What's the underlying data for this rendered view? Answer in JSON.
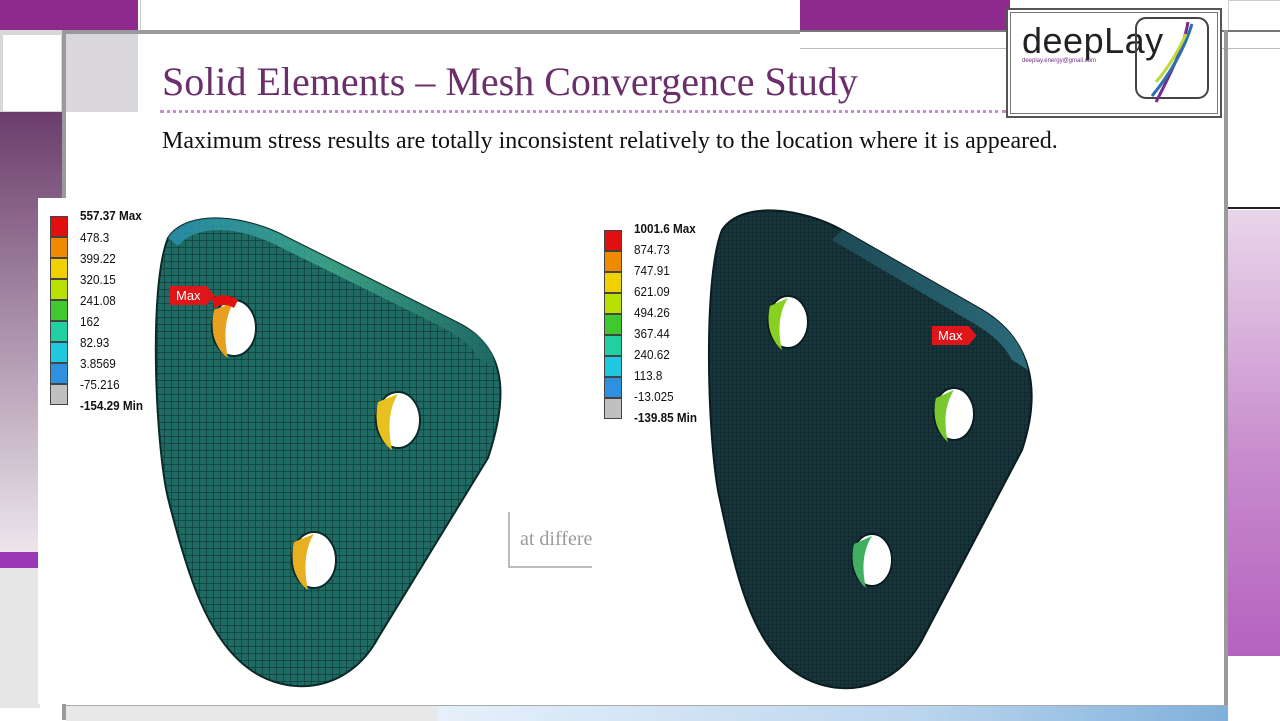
{
  "slide": {
    "title": "Solid Elements – Mesh Convergence Study",
    "body": "Maximum stress results are totally inconsistent relatively to the location where it is appeared.",
    "caption": "at different locations"
  },
  "logo": {
    "name": "deepLay",
    "email": "deeplay.energy@gmail.com"
  },
  "left_plot": {
    "max_label": "557.37 Max",
    "values": [
      "478.3",
      "399.22",
      "320.15",
      "241.08",
      "162",
      "82.93",
      "3.8569",
      "-75.216"
    ],
    "min_label": "-154.29 Min",
    "tag": "Max"
  },
  "right_plot": {
    "max_label": "1001.6 Max",
    "values": [
      "874.73",
      "747.91",
      "621.09",
      "494.26",
      "367.44",
      "240.62",
      "113.8",
      "-13.025"
    ],
    "min_label": "-139.85 Min",
    "tag": "Max"
  },
  "colors": {
    "legend_scale": [
      "#e01010",
      "#f08a00",
      "#f0d000",
      "#b8e000",
      "#40c830",
      "#20d0a0",
      "#20c8e0",
      "#3090e0",
      "#c0c0c0"
    ],
    "accent_purple": "#8e2a8e",
    "title_color": "#6b2f6b"
  }
}
